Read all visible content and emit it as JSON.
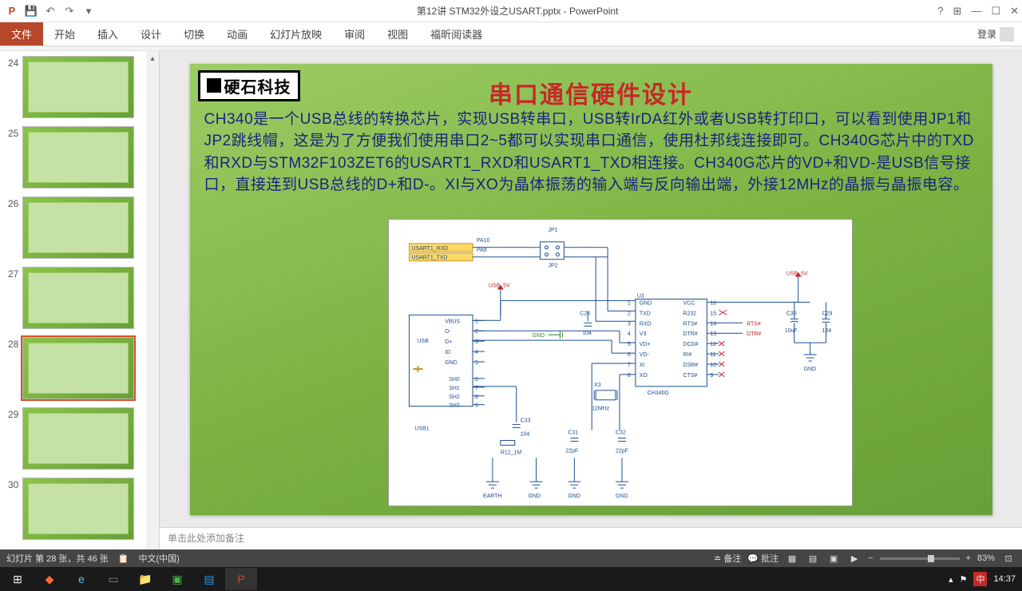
{
  "titlebar": {
    "doc": "第12讲 STM32外设之USART.pptx - PowerPoint",
    "help": "?"
  },
  "tabs": {
    "file": "文件",
    "items": [
      "开始",
      "插入",
      "设计",
      "切换",
      "动画",
      "幻灯片放映",
      "审阅",
      "视图",
      "福昕阅读器"
    ],
    "login": "登录"
  },
  "thumbs": {
    "start": 24,
    "count": 7,
    "active": 28
  },
  "slide": {
    "logo": "硬石科技",
    "title": "串口通信硬件设计",
    "body": "CH340是一个USB总线的转换芯片，实现USB转串口，USB转IrDA红外或者USB转打印口，可以看到使用JP1和JP2跳线帽，这是为了方便我们使用串口2~5都可以实现串口通信，使用杜邦线连接即可。CH340G芯片中的TXD和RXD与STM32F103ZET6的USART1_RXD和USART1_TXD相连接。CH340G芯片的VD+和VD-是USB信号接口，直接连到USB总线的D+和D-。XI与XO为晶体振荡的输入端与反向输出端，外接12MHz的晶振与晶振电容。"
  },
  "schematic": {
    "usart_rxd": "USART1_RXD",
    "usart_txd": "USART1_TXD",
    "pa10": "PA10",
    "pa9": "PA9",
    "jp1": "JP1",
    "jp2": "JP2",
    "usb5v": "USB_5V",
    "usb5v_r": "USB_5V",
    "u3": "U3",
    "chip": "CH340G",
    "pins_l": [
      "GND",
      "TXD",
      "RXD",
      "V3",
      "VD+",
      "VD-",
      "XI",
      "XO"
    ],
    "pins_r": [
      "VCC",
      "R232",
      "RTS#",
      "DTR#",
      "DCD#",
      "RI#",
      "DSR#",
      "CTS#"
    ],
    "nums_l": [
      "1",
      "2",
      "3",
      "4",
      "5",
      "6",
      "7",
      "8"
    ],
    "nums_r": [
      "16",
      "15",
      "14",
      "13",
      "12",
      "11",
      "10",
      "9"
    ],
    "vbus": "VBUS",
    "dminus": "D-",
    "dplus": "D+",
    "id": "ID",
    "gnd": "GND",
    "sh": [
      "SH0",
      "SH1",
      "SH2",
      "SH3"
    ],
    "sh_n": [
      "6",
      "7",
      "8",
      "9"
    ],
    "usb": "USB",
    "usb1": "USB1",
    "c28": "C28",
    "c104": "104",
    "gnd_arrow": "GND",
    "x3": "X3",
    "x3_f": "12MHz",
    "c31": "C31",
    "c32": "C32",
    "c22pf": "22pF",
    "c33": "C33",
    "c33v": "104",
    "r12": "R12_1M",
    "rts": "RTS#",
    "dtr": "DTR#",
    "c30": "C30",
    "c30v": "10uF",
    "c29": "C29",
    "c29v": "104",
    "earth": "EARTH",
    "gnd_lbl": "GND",
    "usb_nums": [
      "1",
      "2",
      "3",
      "4",
      "5"
    ]
  },
  "notes": "单击此处添加备注",
  "status": {
    "slide_info": "幻灯片 第 28 张，共 46 张",
    "lang": "中文(中国)",
    "notes": "备注",
    "comments": "批注",
    "zoom": "83%"
  },
  "taskbar": {
    "ime": "中",
    "time": "14:37"
  }
}
